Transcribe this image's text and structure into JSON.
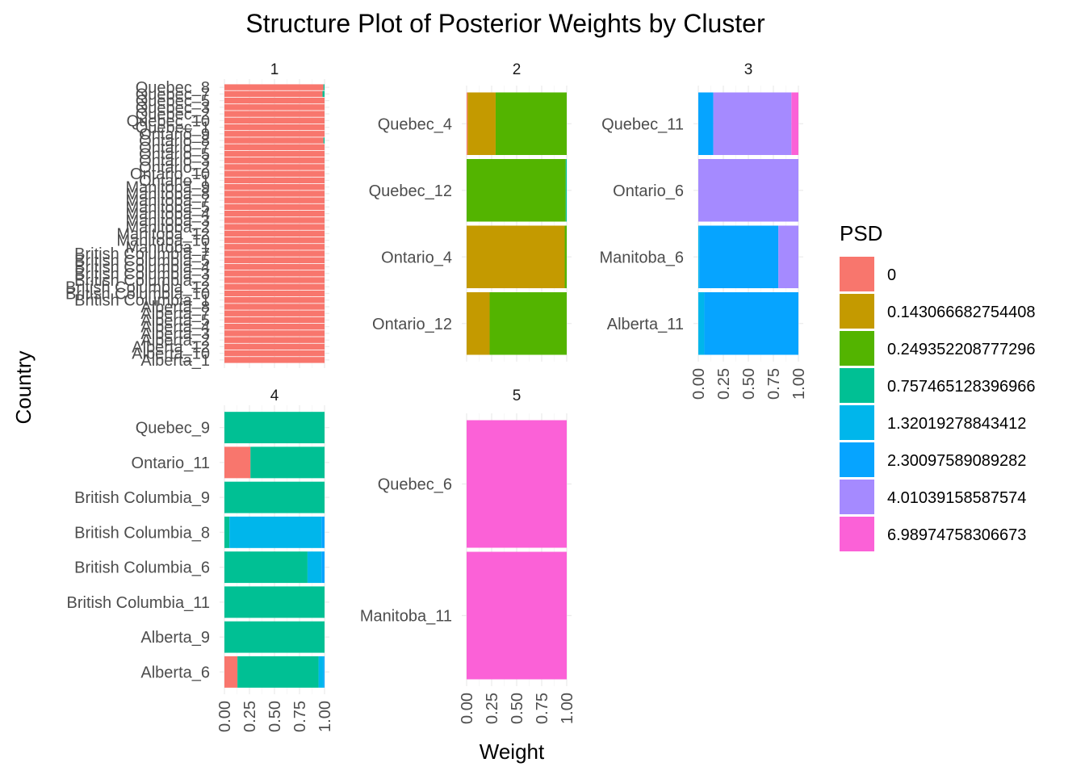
{
  "chart_data": {
    "type": "bar",
    "orientation": "horizontal-stacked",
    "title": "Structure Plot of Posterior Weights by Cluster",
    "xlabel": "Weight",
    "ylabel": "Country",
    "xlim": [
      0,
      1
    ],
    "x_ticks": [
      "0.00",
      "0.25",
      "0.50",
      "0.75",
      "1.00"
    ],
    "grid": true,
    "legend": {
      "title": "PSD",
      "position": "right",
      "entries": [
        {
          "label": "0",
          "color": "#F8766D"
        },
        {
          "label": "0.143066682754408",
          "color": "#C49A00"
        },
        {
          "label": "0.249352208777296",
          "color": "#53B400"
        },
        {
          "label": "0.757465128396966",
          "color": "#00C094"
        },
        {
          "label": "1.32019278843412",
          "color": "#00B6EB"
        },
        {
          "label": "2.30097589089282",
          "color": "#06A4FF"
        },
        {
          "label": "4.01039158587574",
          "color": "#A58AFF"
        },
        {
          "label": "6.98974758306673",
          "color": "#FB61D7"
        }
      ]
    },
    "panels": [
      {
        "strip": "1",
        "rows": [
          {
            "label": "Quebec_8",
            "weights": [
              0.99,
              0,
              0,
              0.01,
              0,
              0,
              0,
              0
            ]
          },
          {
            "label": "Quebec_7",
            "weights": [
              0.98,
              0,
              0,
              0.02,
              0,
              0,
              0,
              0
            ]
          },
          {
            "label": "Quebec_5",
            "weights": [
              1,
              0,
              0,
              0,
              0,
              0,
              0,
              0
            ]
          },
          {
            "label": "Quebec_3",
            "weights": [
              1,
              0,
              0,
              0,
              0,
              0,
              0,
              0
            ]
          },
          {
            "label": "Quebec_2",
            "weights": [
              1,
              0,
              0,
              0,
              0,
              0,
              0,
              0
            ]
          },
          {
            "label": "Quebec_10",
            "weights": [
              1,
              0,
              0,
              0,
              0,
              0,
              0,
              0
            ]
          },
          {
            "label": "Quebec_1",
            "weights": [
              1,
              0,
              0,
              0,
              0,
              0,
              0,
              0
            ]
          },
          {
            "label": "Ontario_9",
            "weights": [
              1,
              0,
              0,
              0,
              0,
              0,
              0,
              0
            ]
          },
          {
            "label": "Ontario_8",
            "weights": [
              0.99,
              0,
              0,
              0.01,
              0,
              0,
              0,
              0
            ]
          },
          {
            "label": "Ontario_7",
            "weights": [
              1,
              0,
              0,
              0,
              0,
              0,
              0,
              0
            ]
          },
          {
            "label": "Ontario_5",
            "weights": [
              1,
              0,
              0,
              0,
              0,
              0,
              0,
              0
            ]
          },
          {
            "label": "Ontario_3",
            "weights": [
              1,
              0,
              0,
              0,
              0,
              0,
              0,
              0
            ]
          },
          {
            "label": "Ontario_2",
            "weights": [
              1,
              0,
              0,
              0,
              0,
              0,
              0,
              0
            ]
          },
          {
            "label": "Ontario_10",
            "weights": [
              1,
              0,
              0,
              0,
              0,
              0,
              0,
              0
            ]
          },
          {
            "label": "Ontario_1",
            "weights": [
              1,
              0,
              0,
              0,
              0,
              0,
              0,
              0
            ]
          },
          {
            "label": "Manitoba_9",
            "weights": [
              1,
              0,
              0,
              0,
              0,
              0,
              0,
              0
            ]
          },
          {
            "label": "Manitoba_8",
            "weights": [
              1,
              0,
              0,
              0,
              0,
              0,
              0,
              0
            ]
          },
          {
            "label": "Manitoba_7",
            "weights": [
              1,
              0,
              0,
              0,
              0,
              0,
              0,
              0
            ]
          },
          {
            "label": "Manitoba_5",
            "weights": [
              1,
              0,
              0,
              0,
              0,
              0,
              0,
              0
            ]
          },
          {
            "label": "Manitoba_4",
            "weights": [
              1,
              0,
              0,
              0,
              0,
              0,
              0,
              0
            ]
          },
          {
            "label": "Manitoba_3",
            "weights": [
              1,
              0,
              0,
              0,
              0,
              0,
              0,
              0
            ]
          },
          {
            "label": "Manitoba_2",
            "weights": [
              1,
              0,
              0,
              0,
              0,
              0,
              0,
              0
            ]
          },
          {
            "label": "Manitoba_12",
            "weights": [
              1,
              0,
              0,
              0,
              0,
              0,
              0,
              0
            ]
          },
          {
            "label": "Manitoba_10",
            "weights": [
              1,
              0,
              0,
              0,
              0,
              0,
              0,
              0
            ]
          },
          {
            "label": "Manitoba_1",
            "weights": [
              1,
              0,
              0,
              0,
              0,
              0,
              0,
              0
            ]
          },
          {
            "label": "British Columbia_7",
            "weights": [
              1,
              0,
              0,
              0,
              0,
              0,
              0,
              0
            ]
          },
          {
            "label": "British Columbia_5",
            "weights": [
              1,
              0,
              0,
              0,
              0,
              0,
              0,
              0
            ]
          },
          {
            "label": "British Columbia_4",
            "weights": [
              1,
              0,
              0,
              0,
              0,
              0,
              0,
              0
            ]
          },
          {
            "label": "British Columbia_3",
            "weights": [
              1,
              0,
              0,
              0,
              0,
              0,
              0,
              0
            ]
          },
          {
            "label": "British Columbia_2",
            "weights": [
              1,
              0,
              0,
              0,
              0,
              0,
              0,
              0
            ]
          },
          {
            "label": "British Columbia_12",
            "weights": [
              1,
              0,
              0,
              0,
              0,
              0,
              0,
              0
            ]
          },
          {
            "label": "British Columbia_10",
            "weights": [
              1,
              0,
              0,
              0,
              0,
              0,
              0,
              0
            ]
          },
          {
            "label": "British Columbia_1",
            "weights": [
              1,
              0,
              0,
              0,
              0,
              0,
              0,
              0
            ]
          },
          {
            "label": "Alberta_8",
            "weights": [
              1,
              0,
              0,
              0,
              0,
              0,
              0,
              0
            ]
          },
          {
            "label": "Alberta_7",
            "weights": [
              1,
              0,
              0,
              0,
              0,
              0,
              0,
              0
            ]
          },
          {
            "label": "Alberta_5",
            "weights": [
              1,
              0,
              0,
              0,
              0,
              0,
              0,
              0
            ]
          },
          {
            "label": "Alberta_4",
            "weights": [
              1,
              0,
              0,
              0,
              0,
              0,
              0,
              0
            ]
          },
          {
            "label": "Alberta_3",
            "weights": [
              1,
              0,
              0,
              0,
              0,
              0,
              0,
              0
            ]
          },
          {
            "label": "Alberta_2",
            "weights": [
              1,
              0,
              0,
              0,
              0,
              0,
              0,
              0
            ]
          },
          {
            "label": "Alberta_12",
            "weights": [
              1,
              0,
              0,
              0,
              0,
              0,
              0,
              0
            ]
          },
          {
            "label": "Alberta_10",
            "weights": [
              1,
              0,
              0,
              0,
              0,
              0,
              0,
              0
            ]
          },
          {
            "label": "Alberta_1",
            "weights": [
              1,
              0,
              0,
              0,
              0,
              0,
              0,
              0
            ]
          }
        ]
      },
      {
        "strip": "2",
        "rows": [
          {
            "label": "Quebec_4",
            "weights": [
              0.01,
              0.28,
              0.71,
              0,
              0,
              0,
              0,
              0
            ]
          },
          {
            "label": "Quebec_12",
            "weights": [
              0,
              0,
              0.99,
              0.01,
              0,
              0,
              0,
              0
            ]
          },
          {
            "label": "Ontario_4",
            "weights": [
              0,
              0.98,
              0.02,
              0,
              0,
              0,
              0,
              0
            ]
          },
          {
            "label": "Ontario_12",
            "weights": [
              0,
              0.23,
              0.77,
              0,
              0,
              0,
              0,
              0
            ]
          }
        ]
      },
      {
        "strip": "3",
        "rows": [
          {
            "label": "Quebec_11",
            "weights": [
              0,
              0,
              0,
              0,
              0,
              0.15,
              0.78,
              0.07
            ]
          },
          {
            "label": "Ontario_6",
            "weights": [
              0,
              0,
              0,
              0,
              0,
              0,
              1,
              0
            ]
          },
          {
            "label": "Manitoba_6",
            "weights": [
              0,
              0,
              0,
              0,
              0.01,
              0.79,
              0.2,
              0
            ]
          },
          {
            "label": "Alberta_11",
            "weights": [
              0,
              0,
              0,
              0,
              0.06,
              0.94,
              0,
              0
            ]
          }
        ]
      },
      {
        "strip": "4",
        "rows": [
          {
            "label": "Quebec_9",
            "weights": [
              0,
              0,
              0,
              1,
              0,
              0,
              0,
              0
            ]
          },
          {
            "label": "Ontario_11",
            "weights": [
              0.26,
              0,
              0,
              0.74,
              0,
              0,
              0,
              0
            ]
          },
          {
            "label": "British Columbia_9",
            "weights": [
              0,
              0,
              0,
              1,
              0,
              0,
              0,
              0
            ]
          },
          {
            "label": "British Columbia_8",
            "weights": [
              0,
              0,
              0,
              0.05,
              0.92,
              0.03,
              0,
              0
            ]
          },
          {
            "label": "British Columbia_6",
            "weights": [
              0,
              0,
              0,
              0.83,
              0.14,
              0.03,
              0,
              0
            ]
          },
          {
            "label": "British Columbia_11",
            "weights": [
              0,
              0,
              0,
              1,
              0,
              0,
              0,
              0
            ]
          },
          {
            "label": "Alberta_9",
            "weights": [
              0,
              0,
              0,
              1,
              0,
              0,
              0,
              0
            ]
          },
          {
            "label": "Alberta_6",
            "weights": [
              0.13,
              0,
              0,
              0.81,
              0.05,
              0.01,
              0,
              0
            ]
          }
        ]
      },
      {
        "strip": "5",
        "rows": [
          {
            "label": "Quebec_6",
            "weights": [
              0,
              0,
              0,
              0,
              0,
              0,
              0,
              1
            ]
          },
          {
            "label": "Manitoba_11",
            "weights": [
              0,
              0,
              0,
              0,
              0,
              0,
              0,
              1
            ]
          }
        ]
      }
    ]
  }
}
